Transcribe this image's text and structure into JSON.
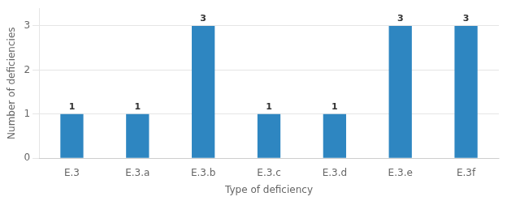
{
  "chart_data": {
    "type": "bar",
    "categories": [
      "E.3",
      "E.3.a",
      "E.3.b",
      "E.3.c",
      "E.3.d",
      "E.3.e",
      "E.3f"
    ],
    "values": [
      1,
      1,
      3,
      1,
      1,
      3,
      3
    ],
    "color": "#2E86C1",
    "xlabel": "Type of deficiency",
    "ylabel": "Number of deficiencies",
    "ylim": [
      0,
      3.4
    ],
    "yticks": [
      0,
      1,
      2,
      3
    ],
    "grid": true,
    "data_labels": true
  }
}
